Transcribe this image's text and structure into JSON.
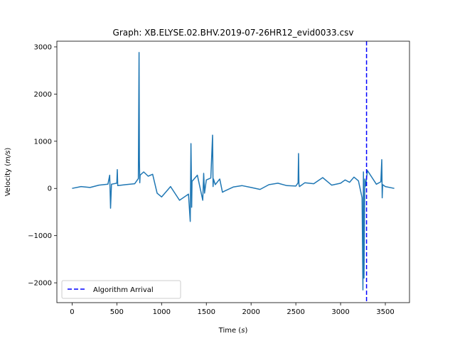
{
  "chart_data": {
    "type": "line",
    "title": "Graph: XB.ELYSE.02.BHV.2019-07-26HR12_evid0033.csv",
    "xlabel_main": "Time (",
    "xlabel_unit": "s",
    "xlabel_close": ")",
    "ylabel_main": "Velocity (",
    "ylabel_unit": "m/s",
    "ylabel_close": ")",
    "xlim": [
      -170,
      3770
    ],
    "ylim": [
      -2420,
      3120
    ],
    "xticks": [
      0,
      500,
      1000,
      1500,
      2000,
      2500,
      3000,
      3500
    ],
    "yticks": [
      -2000,
      -1000,
      0,
      1000,
      2000,
      3000
    ],
    "grid": false,
    "series": [
      {
        "color": "#1f77b4",
        "x": [
          0,
          100,
          200,
          300,
          400,
          420,
          430,
          440,
          500,
          505,
          510,
          600,
          700,
          740,
          748,
          752,
          756,
          760,
          800,
          850,
          900,
          950,
          1000,
          1100,
          1200,
          1300,
          1320,
          1328,
          1332,
          1336,
          1340,
          1400,
          1460,
          1470,
          1480,
          1500,
          1550,
          1570,
          1575,
          1580,
          1600,
          1650,
          1680,
          1700,
          1800,
          1900,
          2000,
          2100,
          2200,
          2300,
          2400,
          2500,
          2525,
          2530,
          2535,
          2540,
          2600,
          2700,
          2800,
          2900,
          3000,
          3050,
          3100,
          3150,
          3200,
          3240,
          3250,
          3255,
          3262,
          3270,
          3280,
          3300,
          3400,
          3450,
          3460,
          3465,
          3470,
          3500,
          3600
        ],
        "y": [
          0,
          40,
          20,
          70,
          90,
          280,
          -420,
          90,
          110,
          400,
          60,
          80,
          100,
          210,
          2880,
          600,
          120,
          280,
          350,
          260,
          300,
          -100,
          -180,
          40,
          -250,
          -120,
          -700,
          950,
          380,
          -400,
          150,
          280,
          -250,
          320,
          -100,
          180,
          220,
          1130,
          40,
          200,
          80,
          200,
          -80,
          -60,
          30,
          60,
          20,
          -20,
          80,
          110,
          60,
          50,
          120,
          740,
          90,
          40,
          120,
          100,
          230,
          70,
          110,
          180,
          130,
          240,
          160,
          -200,
          -2150,
          350,
          -1900,
          200,
          50,
          380,
          90,
          140,
          610,
          -200,
          80,
          40,
          0
        ]
      }
    ],
    "vline": {
      "x": 3290,
      "color": "#0000ff",
      "label": "Algorithm Arrival"
    },
    "legend_loc": "lower left"
  }
}
